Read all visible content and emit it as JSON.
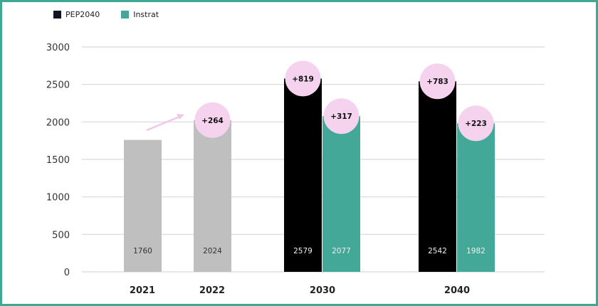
{
  "chart_data": {
    "type": "bar",
    "title": "",
    "xlabel": "",
    "ylabel": "",
    "ylim": [
      0,
      3000
    ],
    "yticks": [
      0,
      500,
      1000,
      1500,
      2000,
      2500,
      3000
    ],
    "grid": true,
    "legend_position": "top-left",
    "legend": [
      {
        "name": "PEP2040",
        "color": "#0d1521"
      },
      {
        "name": "Instrat",
        "color": "#44a899"
      }
    ],
    "categories": [
      "2021",
      "2022",
      "2030",
      "2040"
    ],
    "bars": [
      {
        "category": "2021",
        "series": "historical",
        "value": 1760,
        "label": "1760",
        "color": "#bfbfbf",
        "delta": ""
      },
      {
        "category": "2022",
        "series": "historical",
        "value": 2024,
        "label": "2024",
        "color": "#bfbfbf",
        "delta": "+264"
      },
      {
        "category": "2030",
        "series": "PEP2040",
        "value": 2579,
        "label": "2579",
        "color": "#000000",
        "delta": "+819"
      },
      {
        "category": "2030",
        "series": "Instrat",
        "value": 2077,
        "label": "2077",
        "color": "#44a899",
        "delta": "+317"
      },
      {
        "category": "2040",
        "series": "PEP2040",
        "value": 2542,
        "label": "2542",
        "color": "#000000",
        "delta": "+783"
      },
      {
        "category": "2040",
        "series": "Instrat",
        "value": 1982,
        "label": "1982",
        "color": "#44a899",
        "delta": "+223"
      }
    ],
    "delta_bubble_color": "#f5d3ef",
    "arrow_color": "#f2c6ea"
  }
}
